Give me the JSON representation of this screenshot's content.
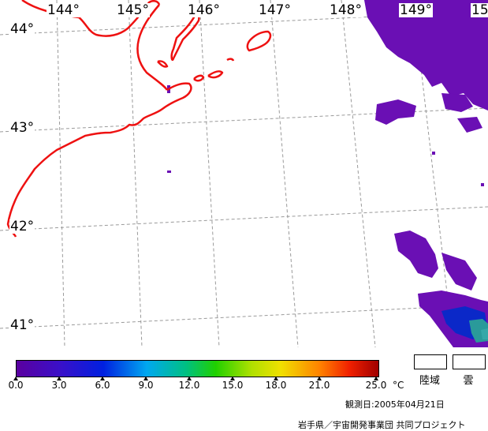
{
  "map": {
    "longitude_labels": [
      "144°",
      "145°",
      "146°",
      "147°",
      "148°",
      "149°",
      "15"
    ],
    "latitude_labels": [
      "44°",
      "43°",
      "42°",
      "41°"
    ],
    "colors": {
      "coastline": "#ee1111",
      "grid": "#9a9a9a",
      "land": "#ffffff",
      "sst_low": "#6a0fb4",
      "sst_mid": "#0b28c8",
      "sst_high": "#2a9a9a"
    }
  },
  "colorbar": {
    "tick_labels": [
      "0.0",
      "3.0",
      "6.0",
      "9.0",
      "12.0",
      "15.0",
      "18.0",
      "21.0",
      "25.0"
    ],
    "unit": "°C",
    "min": 0.0,
    "max": 25.0
  },
  "legend": {
    "land_label": "陸域",
    "cloud_label": "雲"
  },
  "footer": {
    "observation_date": "観測日:2005年04月21日",
    "credit": "岩手県／宇宙開発事業団 共同プロジェクト"
  }
}
